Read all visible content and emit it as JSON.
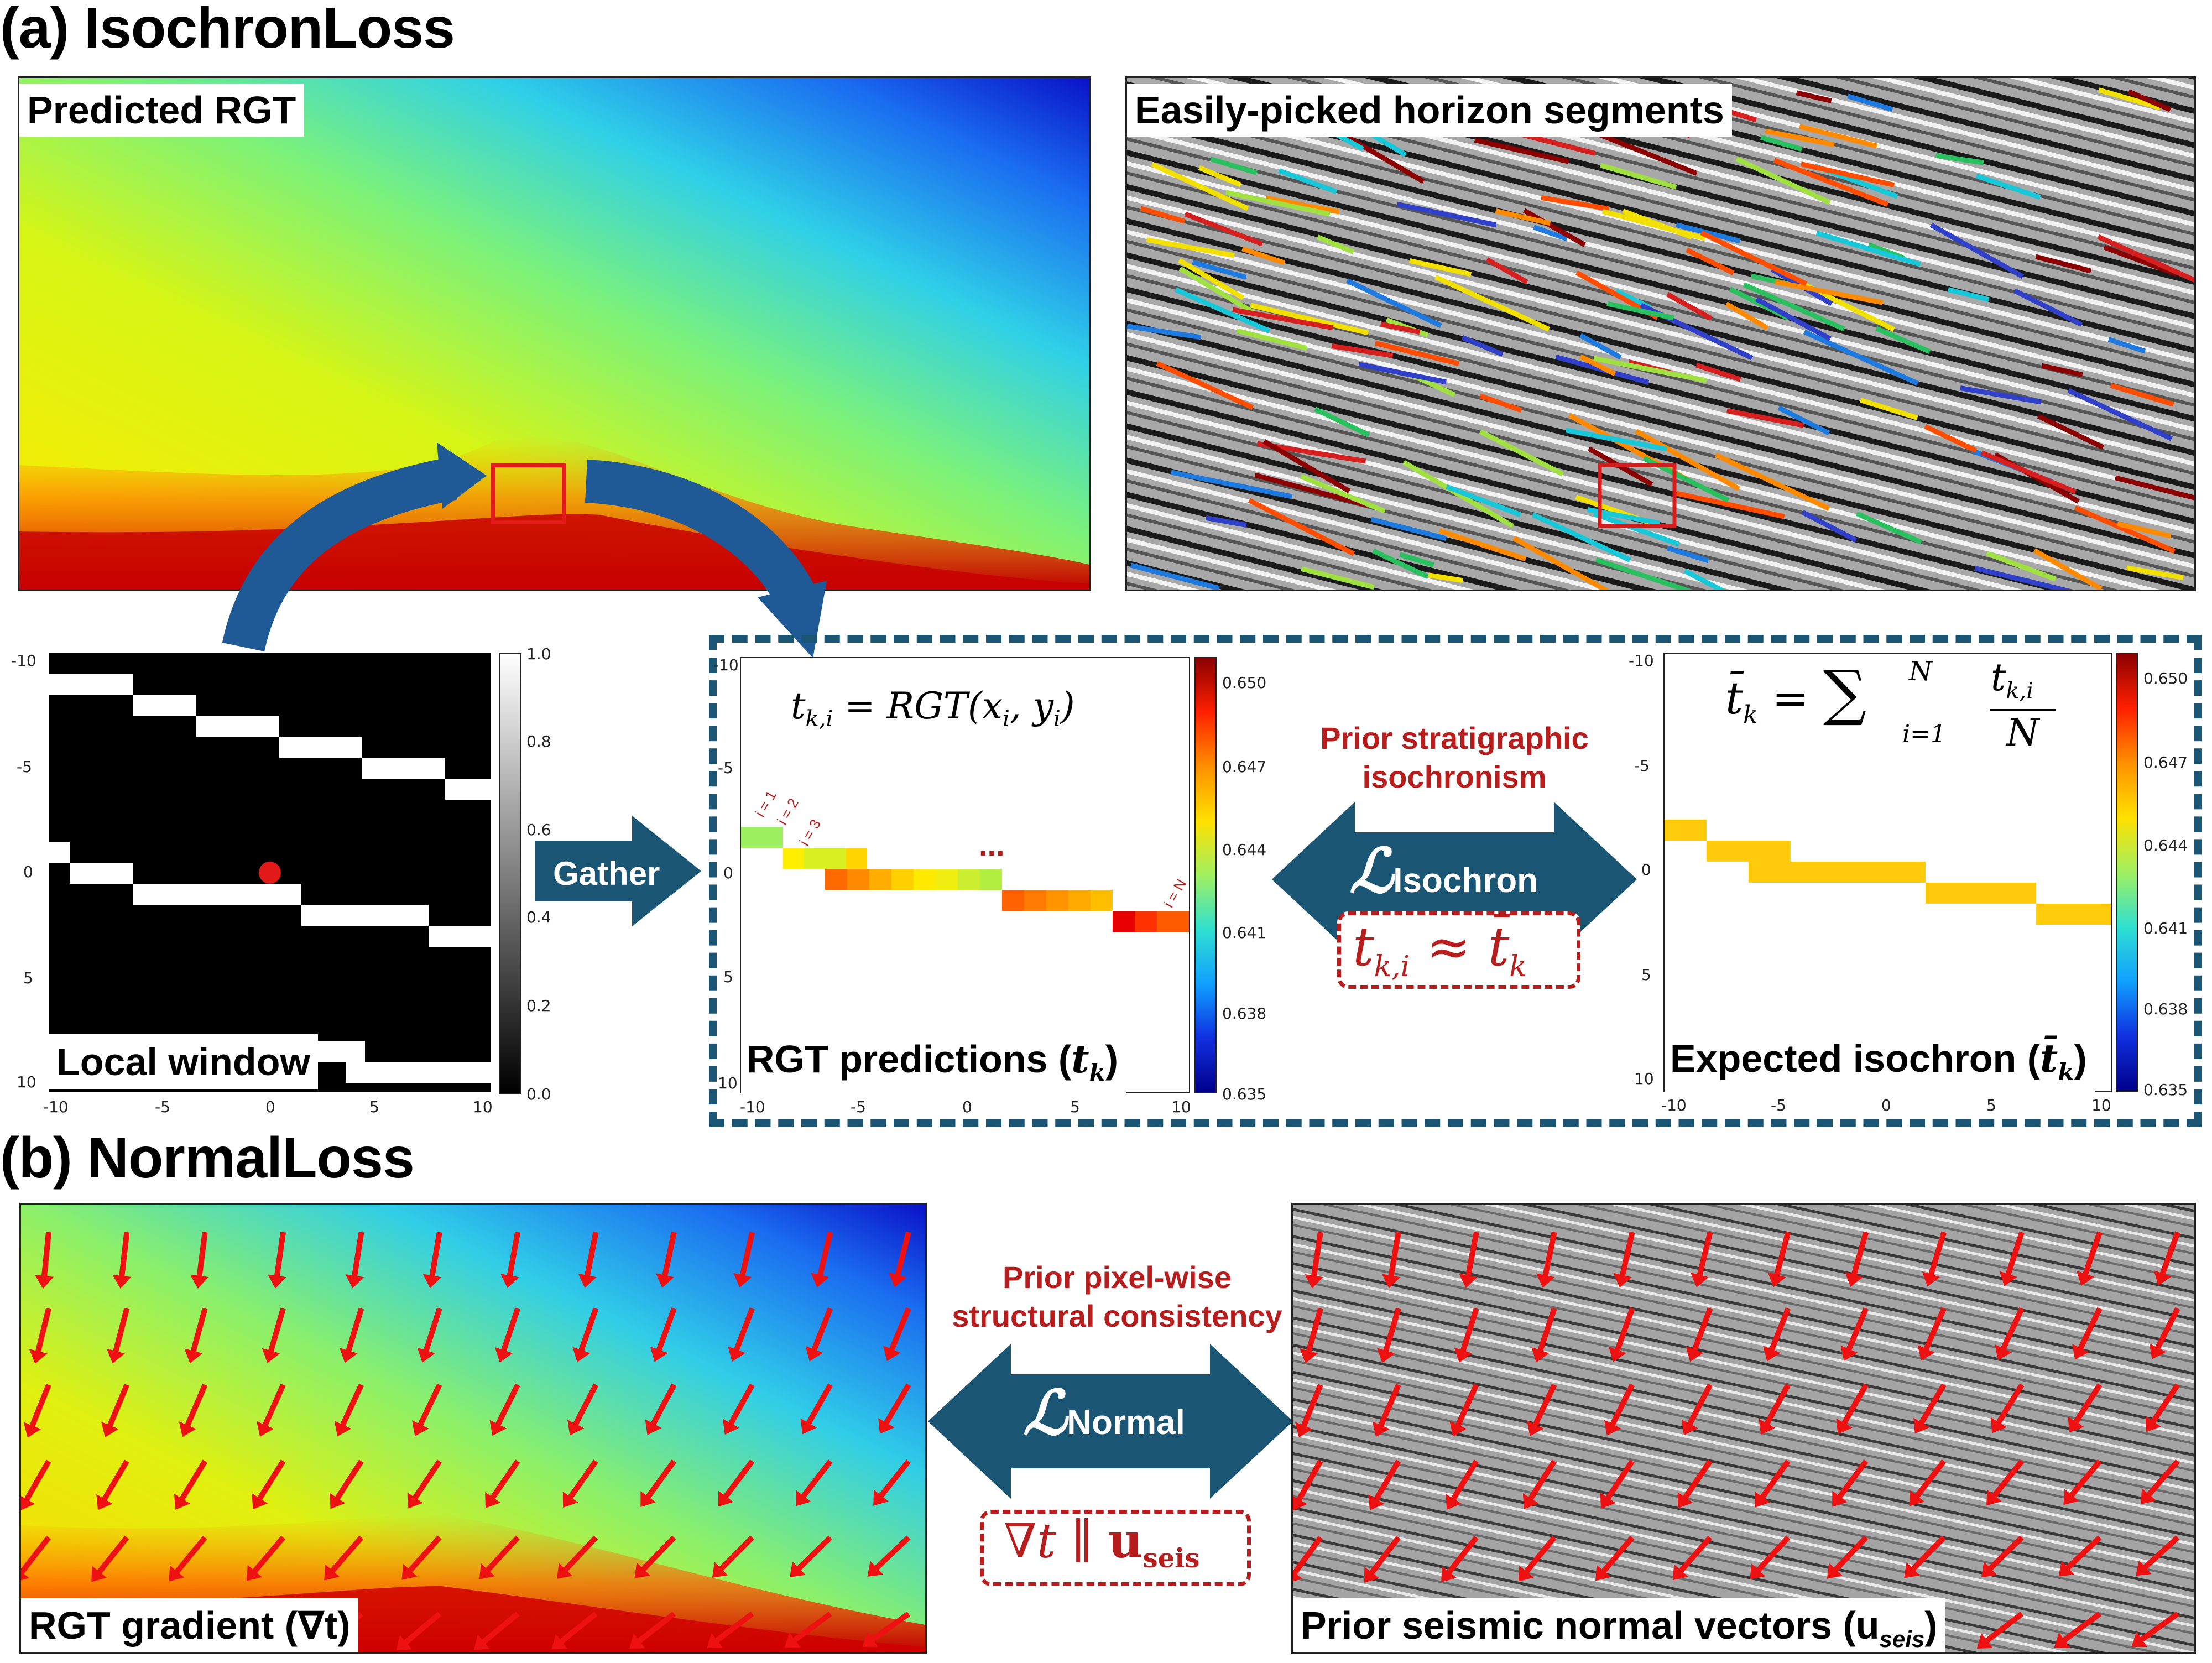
{
  "section_a": {
    "title": "(a) IsochronLoss",
    "predicted_rgt_label": "Predicted RGT",
    "horizon_label": "Easily-picked horizon segments",
    "local_window_label": "Local window",
    "gather_label": "Gather",
    "rgt_predictions_label": "RGT predictions (",
    "rgt_predictions_sym": "t",
    "rgt_predictions_sub": "k",
    "expected_isochron_label": "Expected isochron (",
    "expected_isochron_sym": "t̄",
    "expected_isochron_sub": "k",
    "eq_left": "t",
    "eq_left_sub": "k,i",
    "eq_left_rhs": "= RGT(x",
    "eq_left_rhs_sub1": "i",
    "eq_left_rhs_mid": ", y",
    "eq_left_rhs_sub2": "i",
    "eq_left_rhs_end": ")",
    "eq_right_lhs": "t̄",
    "eq_right_lhs_sub": "k",
    "eq_right_eq": "=",
    "eq_right_sum": "∑",
    "eq_right_sum_top": "N",
    "eq_right_sum_bot": "i=1",
    "eq_right_num": "t",
    "eq_right_num_sub": "k,i",
    "eq_right_den": "N",
    "prior_line1": "Prior stratigraphic",
    "prior_line2": "isochronism",
    "loss_script": "ℒ",
    "loss_sub": "Isochron",
    "constraint_a": "t",
    "constraint_a_sub": "k,i",
    "constraint_a_op": "≈",
    "constraint_a_rhs": "t̄",
    "constraint_a_rhs_sub": "k",
    "idx_labels": [
      "i = 1",
      "i = 2",
      "i = 3",
      "i = N"
    ],
    "dots": "...",
    "local_window_colorbar_ticks": [
      "1.0",
      "0.8",
      "0.6",
      "0.4",
      "0.2",
      "0.0"
    ],
    "window_y_ticks": [
      "-10",
      "-5",
      "0",
      "5",
      "10"
    ],
    "window_x_ticks": [
      "-10",
      "-5",
      "0",
      "5",
      "10"
    ],
    "value_colorbar_ticks": [
      "0.650",
      "0.647",
      "0.644",
      "0.641",
      "0.638",
      "0.635"
    ]
  },
  "section_b": {
    "title": "(b) NormalLoss",
    "rgt_gradient_label": "RGT gradient (∇t)",
    "normals_label": "Prior seismic normal vectors (u",
    "normals_sub": "seis",
    "prior_line1": "Prior pixel-wise",
    "prior_line2": "structural consistency",
    "loss_script": "ℒ",
    "loss_sub": "Normal",
    "constraint_b_lhs": "∇t",
    "constraint_b_op": "∥",
    "constraint_b_rhs": "u",
    "constraint_b_rhs_sub": "seis"
  },
  "colors": {
    "arrow_blue": "#1f5a96",
    "loss_arrow": "#1a5674",
    "dashed_box": "#1a5674",
    "accent_red": "#b81d1d",
    "vector_red": "#ee1111"
  }
}
